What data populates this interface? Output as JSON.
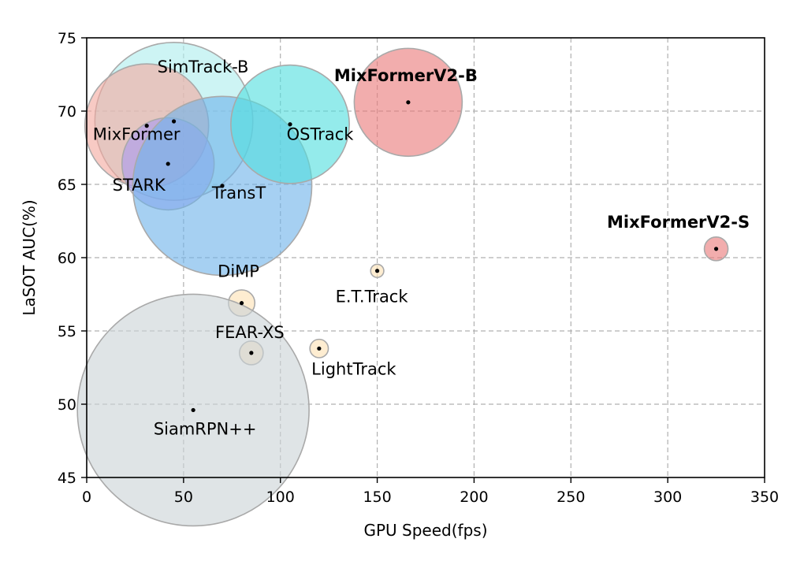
{
  "chart_data": {
    "type": "scatter",
    "title": "",
    "xlabel": "GPU Speed(fps)",
    "ylabel": "LaSOT AUC(%)",
    "xlim": [
      0,
      350
    ],
    "ylim": [
      45,
      75
    ],
    "xticks": [
      0,
      50,
      100,
      150,
      200,
      250,
      300,
      350
    ],
    "yticks": [
      45,
      50,
      55,
      60,
      65,
      70,
      75
    ],
    "grid": true,
    "bubble_size_encoding": true,
    "points": [
      {
        "name": "SimTrack-B",
        "x": 45,
        "y": 69.3,
        "size": 6.0,
        "color": "#aeeeee",
        "label_color": "#000000"
      },
      {
        "name": "MixFormer",
        "x": 31,
        "y": 69.0,
        "size": 4.7,
        "color": "#f4a9a0",
        "label_color": "#000000"
      },
      {
        "name": "STARK",
        "x": 42,
        "y": 66.4,
        "size": 3.5,
        "color": "#a99bf0",
        "label_color": "#000000"
      },
      {
        "name": "TransT",
        "x": 70,
        "y": 64.9,
        "size": 6.8,
        "color": "#6fb3ea",
        "label_color": "#000000"
      },
      {
        "name": "OSTrack",
        "x": 105,
        "y": 69.1,
        "size": 4.5,
        "color": "#53dede",
        "label_color": "#000000"
      },
      {
        "name": "MixFormerV2-B",
        "x": 166,
        "y": 70.6,
        "size": 4.1,
        "color": "#ea7a7a",
        "label_color": "#ff0000"
      },
      {
        "name": "MixFormerV2-S",
        "x": 325,
        "y": 60.6,
        "size": 0.9,
        "color": "#ea7a7a",
        "label_color": "#ff0000"
      },
      {
        "name": "E.T.Track",
        "x": 150,
        "y": 59.1,
        "size": 0.5,
        "color": "#fde2b4",
        "label_color": "#000000"
      },
      {
        "name": "DiMP",
        "x": 80,
        "y": 56.9,
        "size": 1.0,
        "color": "#fde2b4",
        "label_color": "#000000"
      },
      {
        "name": "FEAR-XS",
        "x": 85,
        "y": 53.5,
        "size": 0.9,
        "color": "#fde2b4",
        "label_color": "#000000"
      },
      {
        "name": "LightTrack",
        "x": 120,
        "y": 53.8,
        "size": 0.7,
        "color": "#fde2b4",
        "label_color": "#000000"
      },
      {
        "name": "SiamRPN++",
        "x": 55,
        "y": 49.6,
        "size": 8.8,
        "color": "#ccd4d6",
        "label_color": "#000000"
      }
    ]
  }
}
